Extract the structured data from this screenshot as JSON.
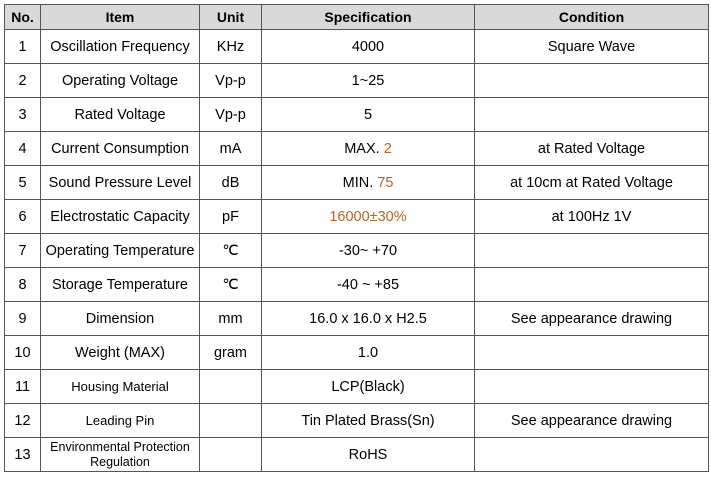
{
  "header": {
    "no": "No.",
    "item": "Item",
    "unit": "Unit",
    "spec": "Specification",
    "condition": "Condition"
  },
  "rows": [
    {
      "no": "1",
      "item": "Oscillation Frequency",
      "unit": "KHz",
      "spec_prefix": "4000",
      "spec_highlight": "",
      "condition": "Square Wave"
    },
    {
      "no": "2",
      "item": "Operating Voltage",
      "unit": "Vp-p",
      "spec_prefix": "1~25",
      "spec_highlight": "",
      "condition": ""
    },
    {
      "no": "3",
      "item": "Rated Voltage",
      "unit": "Vp-p",
      "spec_prefix": "5",
      "spec_highlight": "",
      "condition": ""
    },
    {
      "no": "4",
      "item": "Current Consumption",
      "unit": "mA",
      "spec_prefix": "MAX. ",
      "spec_highlight": "2",
      "condition": "at Rated Voltage"
    },
    {
      "no": "5",
      "item": "Sound Pressure Level",
      "unit": "dB",
      "spec_prefix": "MIN. ",
      "spec_highlight": "75",
      "condition": "at 10cm at Rated Voltage"
    },
    {
      "no": "6",
      "item": "Electrostatic Capacity",
      "unit": "pF",
      "spec_prefix": "",
      "spec_highlight": "16000±30%",
      "condition": "at 100Hz 1V"
    },
    {
      "no": "7",
      "item": "Operating Temperature",
      "unit": "℃",
      "spec_prefix": "-30~ +70",
      "spec_highlight": "",
      "condition": ""
    },
    {
      "no": "8",
      "item": "Storage Temperature",
      "unit": "℃",
      "spec_prefix": "-40 ~ +85",
      "spec_highlight": "",
      "condition": ""
    },
    {
      "no": "9",
      "item": "Dimension",
      "unit": "mm",
      "spec_prefix": "16.0 x 16.0 x H2.5",
      "spec_highlight": "",
      "condition": "See appearance drawing"
    },
    {
      "no": "10",
      "item": "Weight (MAX)",
      "unit": "gram",
      "spec_prefix": "1.0",
      "spec_highlight": "",
      "condition": ""
    },
    {
      "no": "11",
      "item": "Housing Material",
      "unit": "",
      "spec_prefix": "LCP(Black)",
      "spec_highlight": "",
      "condition": ""
    },
    {
      "no": "12",
      "item": "Leading Pin",
      "unit": "",
      "spec_prefix": "Tin Plated Brass(Sn)",
      "spec_highlight": "",
      "condition": "See appearance drawing"
    },
    {
      "no": "13",
      "item": "Environmental Protection Regulation",
      "unit": "",
      "spec_prefix": "RoHS",
      "spec_highlight": "",
      "condition": ""
    }
  ],
  "colors": {
    "highlight": "#b5651d",
    "header_bg": "#d9d9d9",
    "border": "#555555"
  }
}
